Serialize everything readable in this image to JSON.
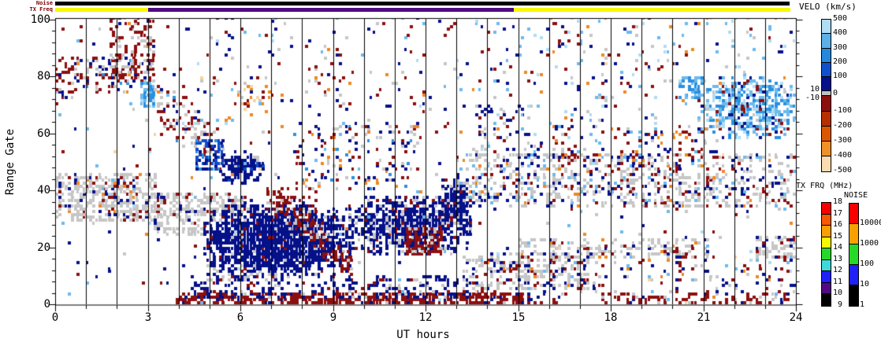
{
  "chart_data": {
    "type": "heatmap",
    "title": "",
    "xlabel": "UT hours",
    "ylabel": "Range Gate",
    "xlim": [
      0,
      24
    ],
    "ylim": [
      0,
      100
    ],
    "x_ticks": [
      0,
      3,
      6,
      9,
      12,
      15,
      18,
      21,
      24
    ],
    "x_gridlines_every_hour": true,
    "y_ticks": [
      0,
      20,
      40,
      60,
      80,
      100
    ],
    "y_minor_tick_step": 4,
    "top_bars": {
      "noise_bar": {
        "label": "Noise",
        "segments": [
          {
            "t": [
              0,
              23.8
            ],
            "color": "#000000"
          }
        ]
      },
      "tx_freq_bar": {
        "label": "TX Freq",
        "segments": [
          {
            "t": [
              0,
              3
            ],
            "color": "#f8f800"
          },
          {
            "t": [
              3,
              14.85
            ],
            "color": "#500a82"
          },
          {
            "t": [
              14.85,
              23.8
            ],
            "color": "#f8f800"
          }
        ]
      }
    },
    "velocity_scale": {
      "title": "VELO (km/s)",
      "tick_labels": [
        500,
        400,
        300,
        200,
        100,
        0,
        -100,
        -200,
        -300,
        -400,
        -500
      ],
      "threshold_labels": [
        10,
        -10
      ],
      "colors": [
        "#b0dcf4",
        "#5cb0e8",
        "#2488dc",
        "#1050cc",
        "#051189",
        "#c0c0c0",
        "#8c0f0f",
        "#b43000",
        "#dc5800",
        "#f09028",
        "#fbdcb0"
      ]
    },
    "tx_frq_scale": {
      "title": "TX FRQ (MHz)",
      "tick_labels": [
        18,
        17,
        16,
        15,
        14,
        13,
        12,
        11,
        10,
        9
      ],
      "colors": [
        "#f80000",
        "#f85800",
        "#f8a000",
        "#f8f800",
        "#28d828",
        "#40d8d8",
        "#2020f8",
        "#500a82",
        "#000000"
      ]
    },
    "noise_scale": {
      "title": "NOISE",
      "tick_labels": [
        10000,
        1000,
        100,
        10,
        1
      ],
      "colors": [
        "#f80000",
        "#f8a000",
        "#28d828",
        "#2020f8",
        "#000000"
      ]
    },
    "palette": {
      "gs": "#c6c6c6",
      "navy": "#051189",
      "b2": "#1049c8",
      "b3": "#2b8fe0",
      "b4": "#6cbaee",
      "b5": "#b0dcf4",
      "r1": "#8c0f0f",
      "o2": "#ee8822",
      "o3": "#f8d4a4"
    },
    "scatter_regions": [
      {
        "name": "gs-band-early",
        "shape": "rect",
        "t": [
          0,
          3.3
        ],
        "g": [
          29,
          45
        ],
        "d": 0.5,
        "pal": {
          "gs": 0.72,
          "r1": 0.12,
          "navy": 0.1,
          "b4": 0.03,
          "o2": 0.03
        }
      },
      {
        "name": "gs-band-morning",
        "shape": "rect",
        "t": [
          3.2,
          6.1
        ],
        "g": [
          24,
          38
        ],
        "d": 0.5,
        "pal": {
          "gs": 0.8,
          "r1": 0.1,
          "navy": 0.1
        }
      },
      {
        "name": "topleft-mixed",
        "shape": "rect",
        "t": [
          0,
          2.6
        ],
        "g": [
          74,
          86
        ],
        "d": 0.3,
        "pal": {
          "r1": 0.45,
          "gs": 0.3,
          "navy": 0.15,
          "b3": 0.05,
          "o2": 0.05
        }
      },
      {
        "name": "topleft-red-cluster",
        "shape": "rect",
        "t": [
          1.75,
          3.2
        ],
        "g": [
          78,
          100
        ],
        "d": 0.38,
        "pal": {
          "r1": 0.55,
          "gs": 0.28,
          "navy": 0.12,
          "o2": 0.05
        }
      },
      {
        "name": "cyan-patch-3ut",
        "shape": "rect",
        "t": [
          2.75,
          3.2
        ],
        "g": [
          69,
          77
        ],
        "d": 0.8,
        "pal": {
          "b4": 0.45,
          "b3": 0.35,
          "b5": 0.2
        }
      },
      {
        "name": "red-diag-descend",
        "shape": "diag",
        "t": [
          3.3,
          5.4
        ],
        "gpath": [
          68,
          52
        ],
        "hw": 8,
        "d": 0.35,
        "pal": {
          "r1": 0.55,
          "gs": 0.3,
          "navy": 0.1,
          "b3": 0.05
        }
      },
      {
        "name": "blue-patch-5ut",
        "shape": "rect",
        "t": [
          4.55,
          5.35
        ],
        "g": [
          47,
          57
        ],
        "d": 0.6,
        "pal": {
          "b2": 0.55,
          "navy": 0.25,
          "b3": 0.2
        }
      },
      {
        "name": "navy-blob-6ut",
        "shape": "blob",
        "t": [
          5.3,
          6.7
        ],
        "g": [
          42,
          53
        ],
        "d": 0.75,
        "pal": {
          "navy": 0.85,
          "b2": 0.1,
          "gs": 0.05
        }
      },
      {
        "name": "gs-under-navy",
        "shape": "rect",
        "t": [
          4.9,
          7.5
        ],
        "g": [
          8,
          13
        ],
        "d": 0.3,
        "pal": {
          "gs": 0.6,
          "navy": 0.3,
          "r1": 0.1
        }
      },
      {
        "name": "main-navy-blob",
        "shape": "blob",
        "t": [
          4.8,
          9.5
        ],
        "g": [
          10,
          34
        ],
        "d": 1.0,
        "pal": {
          "navy": 0.94,
          "r1": 0.03,
          "gs": 0.03
        }
      },
      {
        "name": "red-streak-1",
        "shape": "diag",
        "t": [
          6.85,
          9.6
        ],
        "gpath": [
          37,
          12
        ],
        "hw": 4.5,
        "d": 0.55,
        "pal": {
          "r1": 0.82,
          "gs": 0.18
        }
      },
      {
        "name": "red-patch-8ut",
        "shape": "rect",
        "t": [
          7.2,
          8.4
        ],
        "g": [
          28,
          40
        ],
        "d": 0.3,
        "pal": {
          "r1": 0.8,
          "gs": 0.2
        }
      },
      {
        "name": "navy-region-noon",
        "shape": "blob",
        "t": [
          9.4,
          13.4
        ],
        "g": [
          17,
          37
        ],
        "d": 0.8,
        "pal": {
          "navy": 0.78,
          "gs": 0.14,
          "r1": 0.08
        }
      },
      {
        "name": "red-patch-noon",
        "shape": "rect",
        "t": [
          11.35,
          12.45
        ],
        "g": [
          17,
          26
        ],
        "d": 0.7,
        "pal": {
          "r1": 0.88,
          "gs": 0.12
        }
      },
      {
        "name": "navy-blob-13ut",
        "shape": "blob",
        "t": [
          12.3,
          13.5
        ],
        "g": [
          26,
          43
        ],
        "d": 0.7,
        "pal": {
          "navy": 0.8,
          "gs": 0.15,
          "r1": 0.05
        }
      },
      {
        "name": "arc-sparse-mid",
        "shape": "rect",
        "t": [
          7.7,
          11.7
        ],
        "g": [
          40,
          63
        ],
        "d": 0.13,
        "pal": {
          "r1": 0.28,
          "navy": 0.28,
          "gs": 0.22,
          "b3": 0.12,
          "o2": 0.1
        }
      },
      {
        "name": "gs-band-evening",
        "shape": "rect",
        "t": [
          13,
          24
        ],
        "g": [
          34,
          52
        ],
        "d": 0.33,
        "pal": {
          "gs": 0.52,
          "r1": 0.17,
          "navy": 0.2,
          "o2": 0.05,
          "b4": 0.06
        }
      },
      {
        "name": "gs-low-14ut",
        "shape": "rect",
        "t": [
          13.2,
          17.3
        ],
        "g": [
          5,
          17
        ],
        "d": 0.4,
        "pal": {
          "gs": 0.68,
          "navy": 0.2,
          "r1": 0.12
        }
      },
      {
        "name": "gs-low-18ut",
        "shape": "rect",
        "t": [
          15,
          21.2
        ],
        "g": [
          16,
          22
        ],
        "d": 0.35,
        "pal": {
          "gs": 0.72,
          "r1": 0.1,
          "navy": 0.1,
          "o2": 0.04,
          "b4": 0.04
        }
      },
      {
        "name": "gs-low-23ut",
        "shape": "rect",
        "t": [
          22.7,
          24
        ],
        "g": [
          16,
          23
        ],
        "d": 0.5,
        "pal": {
          "gs": 0.8,
          "navy": 0.1,
          "r1": 0.1
        }
      },
      {
        "name": "cyan-region-22ut",
        "shape": "blob",
        "t": [
          21.1,
          24
        ],
        "g": [
          58,
          79
        ],
        "d": 0.65,
        "pal": {
          "b3": 0.38,
          "b4": 0.3,
          "b5": 0.18,
          "navy": 0.06,
          "r1": 0.08
        }
      },
      {
        "name": "blue-patch-20ut",
        "shape": "rect",
        "t": [
          20.2,
          20.95
        ],
        "g": [
          72,
          79
        ],
        "d": 0.6,
        "pal": {
          "b3": 0.6,
          "b4": 0.4
        }
      },
      {
        "name": "bottom-red-band",
        "shape": "rect",
        "t": [
          3.9,
          15.3
        ],
        "g": [
          0,
          3
        ],
        "d": 0.7,
        "pal": {
          "r1": 0.9,
          "navy": 0.1
        }
      },
      {
        "name": "bottom-red-late",
        "shape": "rect",
        "t": [
          15.3,
          24
        ],
        "g": [
          0,
          3
        ],
        "d": 0.28,
        "pal": {
          "r1": 0.75,
          "navy": 0.12,
          "gs": 0.13
        }
      },
      {
        "name": "bottom-navy",
        "shape": "rect",
        "t": [
          4.4,
          13.6
        ],
        "g": [
          2,
          9
        ],
        "d": 0.3,
        "pal": {
          "navy": 0.72,
          "r1": 0.16,
          "gs": 0.12
        }
      },
      {
        "name": "bottom-mixed-late",
        "shape": "rect",
        "t": [
          13.5,
          24
        ],
        "g": [
          3,
          15
        ],
        "d": 0.1,
        "pal": {
          "r1": 0.3,
          "navy": 0.3,
          "gs": 0.25,
          "o2": 0.08,
          "b4": 0.07
        }
      },
      {
        "name": "orange-cluster-6ut",
        "shape": "rect",
        "t": [
          5.8,
          7.0
        ],
        "g": [
          66,
          76
        ],
        "d": 0.18,
        "pal": {
          "o2": 0.45,
          "o3": 0.3,
          "r1": 0.15,
          "gs": 0.1
        }
      },
      {
        "name": "upper-right-sparse",
        "shape": "rect",
        "t": [
          15,
          24
        ],
        "g": [
          58,
          100
        ],
        "d": 0.045,
        "pal": {
          "b4": 0.3,
          "b5": 0.2,
          "gs": 0.18,
          "o2": 0.12,
          "r1": 0.12,
          "navy": 0.08
        }
      },
      {
        "name": "mid-right-mixed",
        "shape": "rect",
        "t": [
          15.5,
          21.5
        ],
        "g": [
          50,
          62
        ],
        "d": 0.12,
        "pal": {
          "r1": 0.3,
          "navy": 0.25,
          "gs": 0.2,
          "o2": 0.12,
          "b4": 0.13
        }
      },
      {
        "name": "navy-specks-14ut",
        "shape": "rect",
        "t": [
          13.5,
          15.4
        ],
        "g": [
          52,
          70
        ],
        "d": 0.13,
        "pal": {
          "navy": 0.6,
          "r1": 0.2,
          "gs": 0.2
        }
      },
      {
        "name": "top-mid-sparse",
        "shape": "rect",
        "t": [
          3.5,
          15
        ],
        "g": [
          60,
          100
        ],
        "d": 0.028,
        "pal": {
          "r1": 0.3,
          "navy": 0.25,
          "gs": 0.2,
          "b4": 0.12,
          "o2": 0.08,
          "b5": 0.05
        }
      },
      {
        "name": "red-cluster-9ut-top",
        "shape": "rect",
        "t": [
          8.2,
          9.3
        ],
        "g": [
          76,
          92
        ],
        "d": 0.1,
        "pal": {
          "r1": 0.55,
          "navy": 0.25,
          "gs": 0.2
        }
      },
      {
        "name": "global-speckle",
        "shape": "rect",
        "t": [
          0,
          24
        ],
        "g": [
          0,
          100
        ],
        "d": 0.022,
        "pal": {
          "r1": 0.28,
          "navy": 0.3,
          "gs": 0.16,
          "b4": 0.1,
          "o2": 0.08,
          "b5": 0.05,
          "o3": 0.03
        }
      }
    ]
  }
}
